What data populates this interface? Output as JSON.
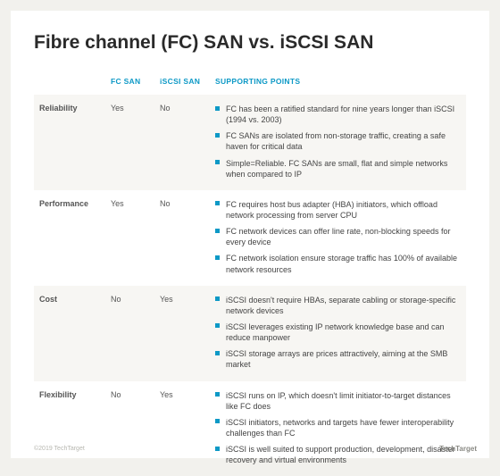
{
  "title": "Fibre channel (FC) SAN vs. iSCSI SAN",
  "colors": {
    "page_bg": "#f2f1ed",
    "card_bg": "#ffffff",
    "alt_row_bg": "#f7f6f3",
    "accent": "#0d99c6",
    "title_color": "#2a2a2a",
    "text_color": "#444444"
  },
  "columns": {
    "category": "",
    "fc": "FC SAN",
    "iscsi": "iSCSI SAN",
    "points": "SUPPORTING POINTS"
  },
  "rows": [
    {
      "category": "Reliability",
      "fc": "Yes",
      "iscsi": "No",
      "points": [
        "FC has been a ratified standard for nine years longer than iSCSI (1994 vs. 2003)",
        "FC SANs are isolated from non-storage traffic, creating a safe haven for critical data",
        "Simple=Reliable. FC SANs are small, flat and simple networks when compared to IP"
      ]
    },
    {
      "category": "Performance",
      "fc": "Yes",
      "iscsi": "No",
      "points": [
        "FC requires host bus adapter (HBA) initiators, which offload network processing from server CPU",
        "FC network devices can offer line rate, non-blocking speeds for every device",
        "FC network isolation ensure storage traffic has 100% of available network resources"
      ]
    },
    {
      "category": "Cost",
      "fc": "No",
      "iscsi": "Yes",
      "points": [
        "iSCSI doesn't require HBAs, separate cabling or storage-specific network devices",
        "iSCSI leverages existing IP network knowledge base and can reduce manpower",
        "iSCSI storage arrays are prices attractively, aiming at the SMB market"
      ]
    },
    {
      "category": "Flexibility",
      "fc": "No",
      "iscsi": "Yes",
      "points": [
        "iSCSI runs on IP, which doesn't limit initiator-to-target distances like FC does",
        "iSCSI initiators, networks and targets have fewer interoperability challenges than FC",
        "iSCSI is well suited to support production, development, disaster recovery and virtual environments"
      ]
    }
  ],
  "footer": {
    "copyright": "©2019 TechTarget",
    "brand": "TechTarget"
  }
}
